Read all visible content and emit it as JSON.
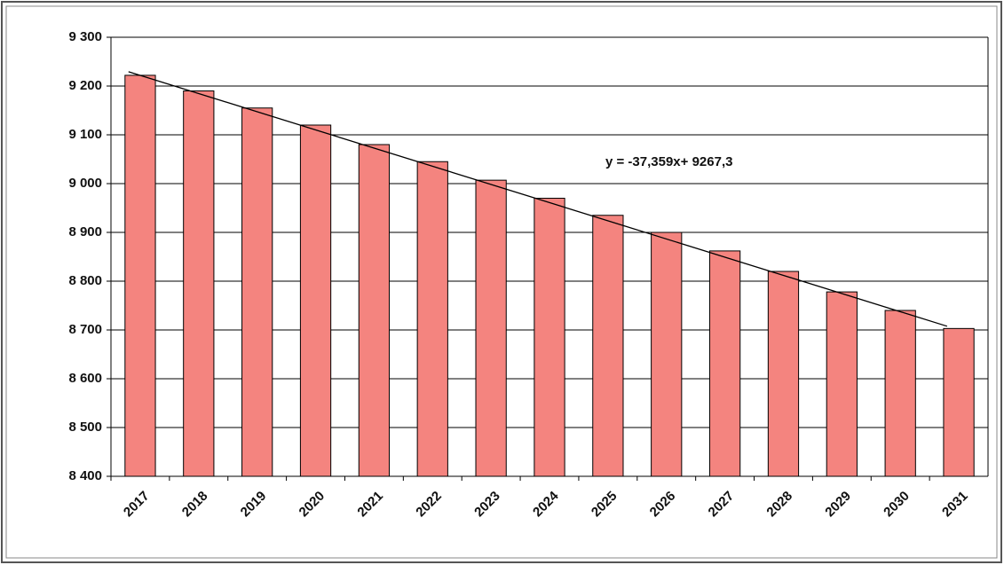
{
  "chart_data": {
    "type": "bar",
    "annotation": "y = -37,359x+ 9267,3",
    "categories": [
      "2017",
      "2018",
      "2019",
      "2020",
      "2021",
      "2022",
      "2023",
      "2024",
      "2025",
      "2026",
      "2027",
      "2028",
      "2029",
      "2030",
      "2031"
    ],
    "values": [
      9222,
      9190,
      9155,
      9120,
      9080,
      9045,
      9007,
      8970,
      8935,
      8900,
      8862,
      8820,
      8778,
      8740,
      8703
    ],
    "color": "#f4847f",
    "trendline": true,
    "ylim": [
      8400,
      9300
    ],
    "yticks": [
      {
        "value": 8400,
        "label": "8 400"
      },
      {
        "value": 8500,
        "label": "8 500"
      },
      {
        "value": 8600,
        "label": "8 600"
      },
      {
        "value": 8700,
        "label": "8 700"
      },
      {
        "value": 8800,
        "label": "8 800"
      },
      {
        "value": 8900,
        "label": "8 900"
      },
      {
        "value": 9000,
        "label": "9 000"
      },
      {
        "value": 9100,
        "label": "9 100"
      },
      {
        "value": 9200,
        "label": "9 200"
      },
      {
        "value": 9300,
        "label": "9 300"
      }
    ],
    "grid": true
  }
}
